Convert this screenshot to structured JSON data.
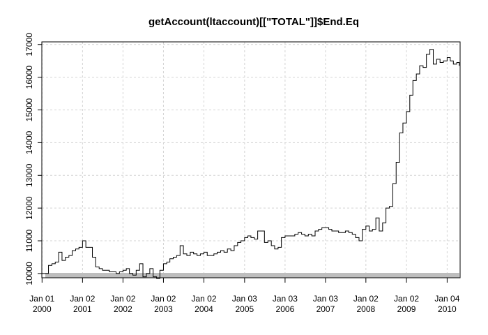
{
  "chart_data": {
    "type": "line",
    "title": "getAccount(ltaccount)[[\"TOTAL\"]]$End.Eq",
    "xlabel": "",
    "ylabel": "",
    "grid": true,
    "line_color": "#000000",
    "grid_color": "#d3d3d3",
    "band_color": "#bebebe",
    "xlim": [
      "2000-01-01",
      "2010-05-01"
    ],
    "ylim": [
      9870,
      17080
    ],
    "y_ticks": [
      10000,
      11000,
      12000,
      13000,
      14000,
      15000,
      16000,
      17000
    ],
    "y_tick_labels": [
      "10000",
      "11000",
      "12000",
      "13000",
      "14000",
      "15000",
      "16000",
      "17000"
    ],
    "x_ticks": [
      {
        "date": "2000-01-03",
        "label_top": "Jan 01",
        "label_bottom": "2000"
      },
      {
        "date": "2001-01-02",
        "label_top": "Jan 02",
        "label_bottom": "2001"
      },
      {
        "date": "2002-01-02",
        "label_top": "Jan 02",
        "label_bottom": "2002"
      },
      {
        "date": "2003-01-02",
        "label_top": "Jan 02",
        "label_bottom": "2003"
      },
      {
        "date": "2004-01-02",
        "label_top": "Jan 02",
        "label_bottom": "2004"
      },
      {
        "date": "2005-01-03",
        "label_top": "Jan 03",
        "label_bottom": "2005"
      },
      {
        "date": "2006-01-03",
        "label_top": "Jan 03",
        "label_bottom": "2006"
      },
      {
        "date": "2007-01-03",
        "label_top": "Jan 03",
        "label_bottom": "2007"
      },
      {
        "date": "2008-01-02",
        "label_top": "Jan 02",
        "label_bottom": "2008"
      },
      {
        "date": "2009-01-02",
        "label_top": "Jan 02",
        "label_bottom": "2009"
      },
      {
        "date": "2010-01-04",
        "label_top": "Jan 04",
        "label_bottom": "2010"
      }
    ],
    "band": {
      "start": "2000-02-01",
      "end": "2010-04-23"
    },
    "series": [
      {
        "x": [
          "2000-01-03",
          "2000-02-01",
          "2000-03-01",
          "2000-04-01",
          "2000-05-01",
          "2000-06-01",
          "2000-07-01",
          "2000-08-01",
          "2000-09-01",
          "2000-10-01",
          "2000-11-01",
          "2000-12-01",
          "2001-01-02",
          "2001-02-01",
          "2001-03-01",
          "2001-04-01",
          "2001-05-01",
          "2001-06-01",
          "2001-07-01",
          "2001-08-01",
          "2001-09-01",
          "2001-10-01",
          "2001-11-01",
          "2001-12-01",
          "2002-01-02",
          "2002-02-01",
          "2002-03-01",
          "2002-04-01",
          "2002-05-01",
          "2002-06-01",
          "2002-07-01",
          "2002-08-01",
          "2002-09-01",
          "2002-10-01",
          "2002-11-01",
          "2002-12-01",
          "2003-01-02",
          "2003-02-01",
          "2003-03-01",
          "2003-04-01",
          "2003-05-01",
          "2003-06-01",
          "2003-07-01",
          "2003-08-01",
          "2003-09-01",
          "2003-10-01",
          "2003-11-01",
          "2003-12-01",
          "2004-01-02",
          "2004-02-01",
          "2004-03-01",
          "2004-04-01",
          "2004-05-01",
          "2004-06-01",
          "2004-07-01",
          "2004-08-01",
          "2004-09-01",
          "2004-10-01",
          "2004-11-01",
          "2004-12-01",
          "2005-01-03",
          "2005-02-01",
          "2005-03-01",
          "2005-04-01",
          "2005-05-01",
          "2005-06-01",
          "2005-07-01",
          "2005-08-01",
          "2005-09-01",
          "2005-10-01",
          "2005-11-01",
          "2005-12-01",
          "2006-01-03",
          "2006-02-01",
          "2006-03-01",
          "2006-04-01",
          "2006-05-01",
          "2006-06-01",
          "2006-07-01",
          "2006-08-01",
          "2006-09-01",
          "2006-10-01",
          "2006-11-01",
          "2006-12-01",
          "2007-01-03",
          "2007-02-01",
          "2007-03-01",
          "2007-04-01",
          "2007-05-01",
          "2007-06-01",
          "2007-07-01",
          "2007-08-01",
          "2007-09-01",
          "2007-10-01",
          "2007-11-01",
          "2007-12-01",
          "2008-01-02",
          "2008-02-01",
          "2008-03-01",
          "2008-04-01",
          "2008-05-01",
          "2008-06-01",
          "2008-07-01",
          "2008-08-01",
          "2008-09-01",
          "2008-10-01",
          "2008-11-01",
          "2008-12-01",
          "2009-01-02",
          "2009-02-01",
          "2009-03-01",
          "2009-04-01",
          "2009-05-01",
          "2009-06-01",
          "2009-07-01",
          "2009-08-01",
          "2009-09-01",
          "2009-10-01",
          "2009-11-01",
          "2009-12-01",
          "2010-01-04",
          "2010-02-01",
          "2010-03-01",
          "2010-04-01",
          "2010-04-23"
        ],
        "values": [
          10000,
          10000,
          10250,
          10300,
          10350,
          10650,
          10400,
          10500,
          10550,
          10700,
          10750,
          10800,
          11000,
          10800,
          10800,
          10500,
          10200,
          10150,
          10100,
          10100,
          10050,
          10050,
          10000,
          10050,
          10100,
          10150,
          10000,
          9950,
          10100,
          10300,
          9900,
          10000,
          10150,
          9900,
          9850,
          10100,
          10300,
          10350,
          10450,
          10500,
          10550,
          10850,
          10600,
          10550,
          10650,
          10600,
          10550,
          10600,
          10650,
          10550,
          10550,
          10600,
          10650,
          10700,
          10650,
          10750,
          10700,
          10850,
          10950,
          11000,
          11100,
          11150,
          11100,
          11050,
          11300,
          11300,
          10950,
          11000,
          10850,
          10750,
          10800,
          11100,
          11150,
          11150,
          11150,
          11200,
          11250,
          11200,
          11150,
          11200,
          11150,
          11300,
          11350,
          11400,
          11400,
          11350,
          11300,
          11300,
          11250,
          11250,
          11300,
          11250,
          11200,
          11100,
          11000,
          11350,
          11450,
          11300,
          11350,
          11700,
          11300,
          11550,
          12000,
          12050,
          12750,
          13400,
          14300,
          14600,
          14950,
          15450,
          15900,
          16100,
          16350,
          16300,
          16700,
          16850,
          16400,
          16550,
          16450,
          16500,
          16600,
          16500,
          16400,
          16450,
          16350
        ]
      }
    ]
  }
}
